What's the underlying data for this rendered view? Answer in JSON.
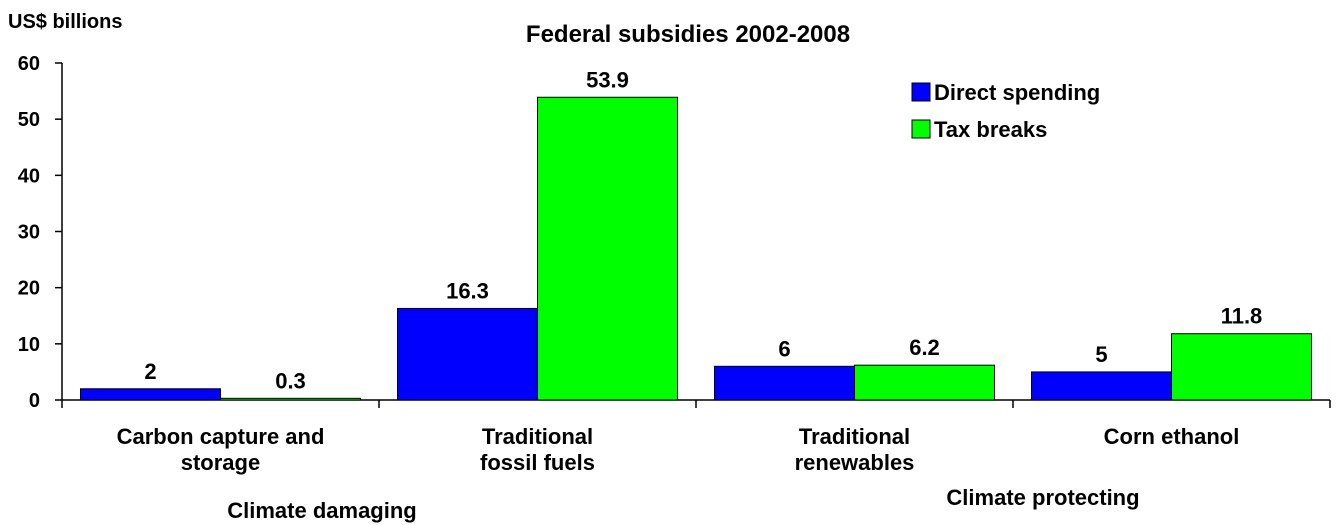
{
  "chart_data": {
    "type": "bar",
    "title": "Federal subsidies 2002-2008",
    "ylabel": "US$ billions",
    "xlabel": "",
    "ylim": [
      0,
      60
    ],
    "yticks": [
      0,
      10,
      20,
      30,
      40,
      50,
      60
    ],
    "categories": [
      [
        "Carbon capture and",
        "storage"
      ],
      [
        "Traditional",
        "fossil fuels"
      ],
      [
        "Traditional",
        "renewables"
      ],
      [
        "Corn ethanol"
      ]
    ],
    "series": [
      {
        "name": "Direct spending",
        "color": "#0000FF",
        "values": [
          2,
          16.3,
          6,
          5
        ]
      },
      {
        "name": "Tax breaks",
        "color": "#00FF00",
        "values": [
          0.3,
          53.9,
          6.2,
          11.8
        ]
      }
    ],
    "group_labels": [
      "Climate damaging",
      "Climate protecting"
    ],
    "grid": false,
    "legend_position": "top-right"
  }
}
